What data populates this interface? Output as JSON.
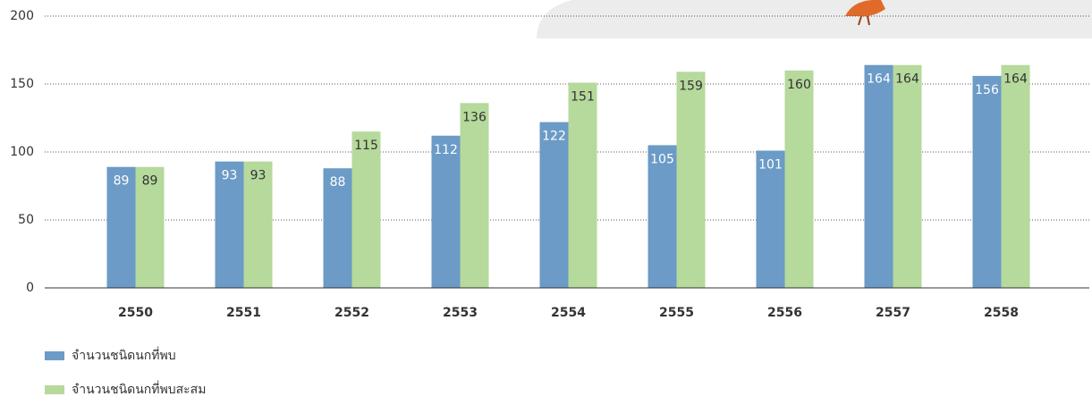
{
  "chart_data": {
    "type": "bar",
    "categories": [
      "2550",
      "2551",
      "2552",
      "2553",
      "2554",
      "2555",
      "2556",
      "2557",
      "2558"
    ],
    "series": [
      {
        "name": "จำนวนชนิดนกที่พบ",
        "color": "#6b9bc6",
        "values": [
          89,
          93,
          88,
          112,
          122,
          105,
          101,
          164,
          156
        ]
      },
      {
        "name": "จำนวนชนิดนกที่พบสะสม",
        "color": "#b6d99c",
        "values": [
          89,
          93,
          115,
          136,
          151,
          159,
          160,
          164,
          164
        ]
      }
    ],
    "ylim": [
      0,
      200
    ],
    "yticks": [
      0,
      50,
      100,
      150,
      200
    ],
    "grid": true
  }
}
